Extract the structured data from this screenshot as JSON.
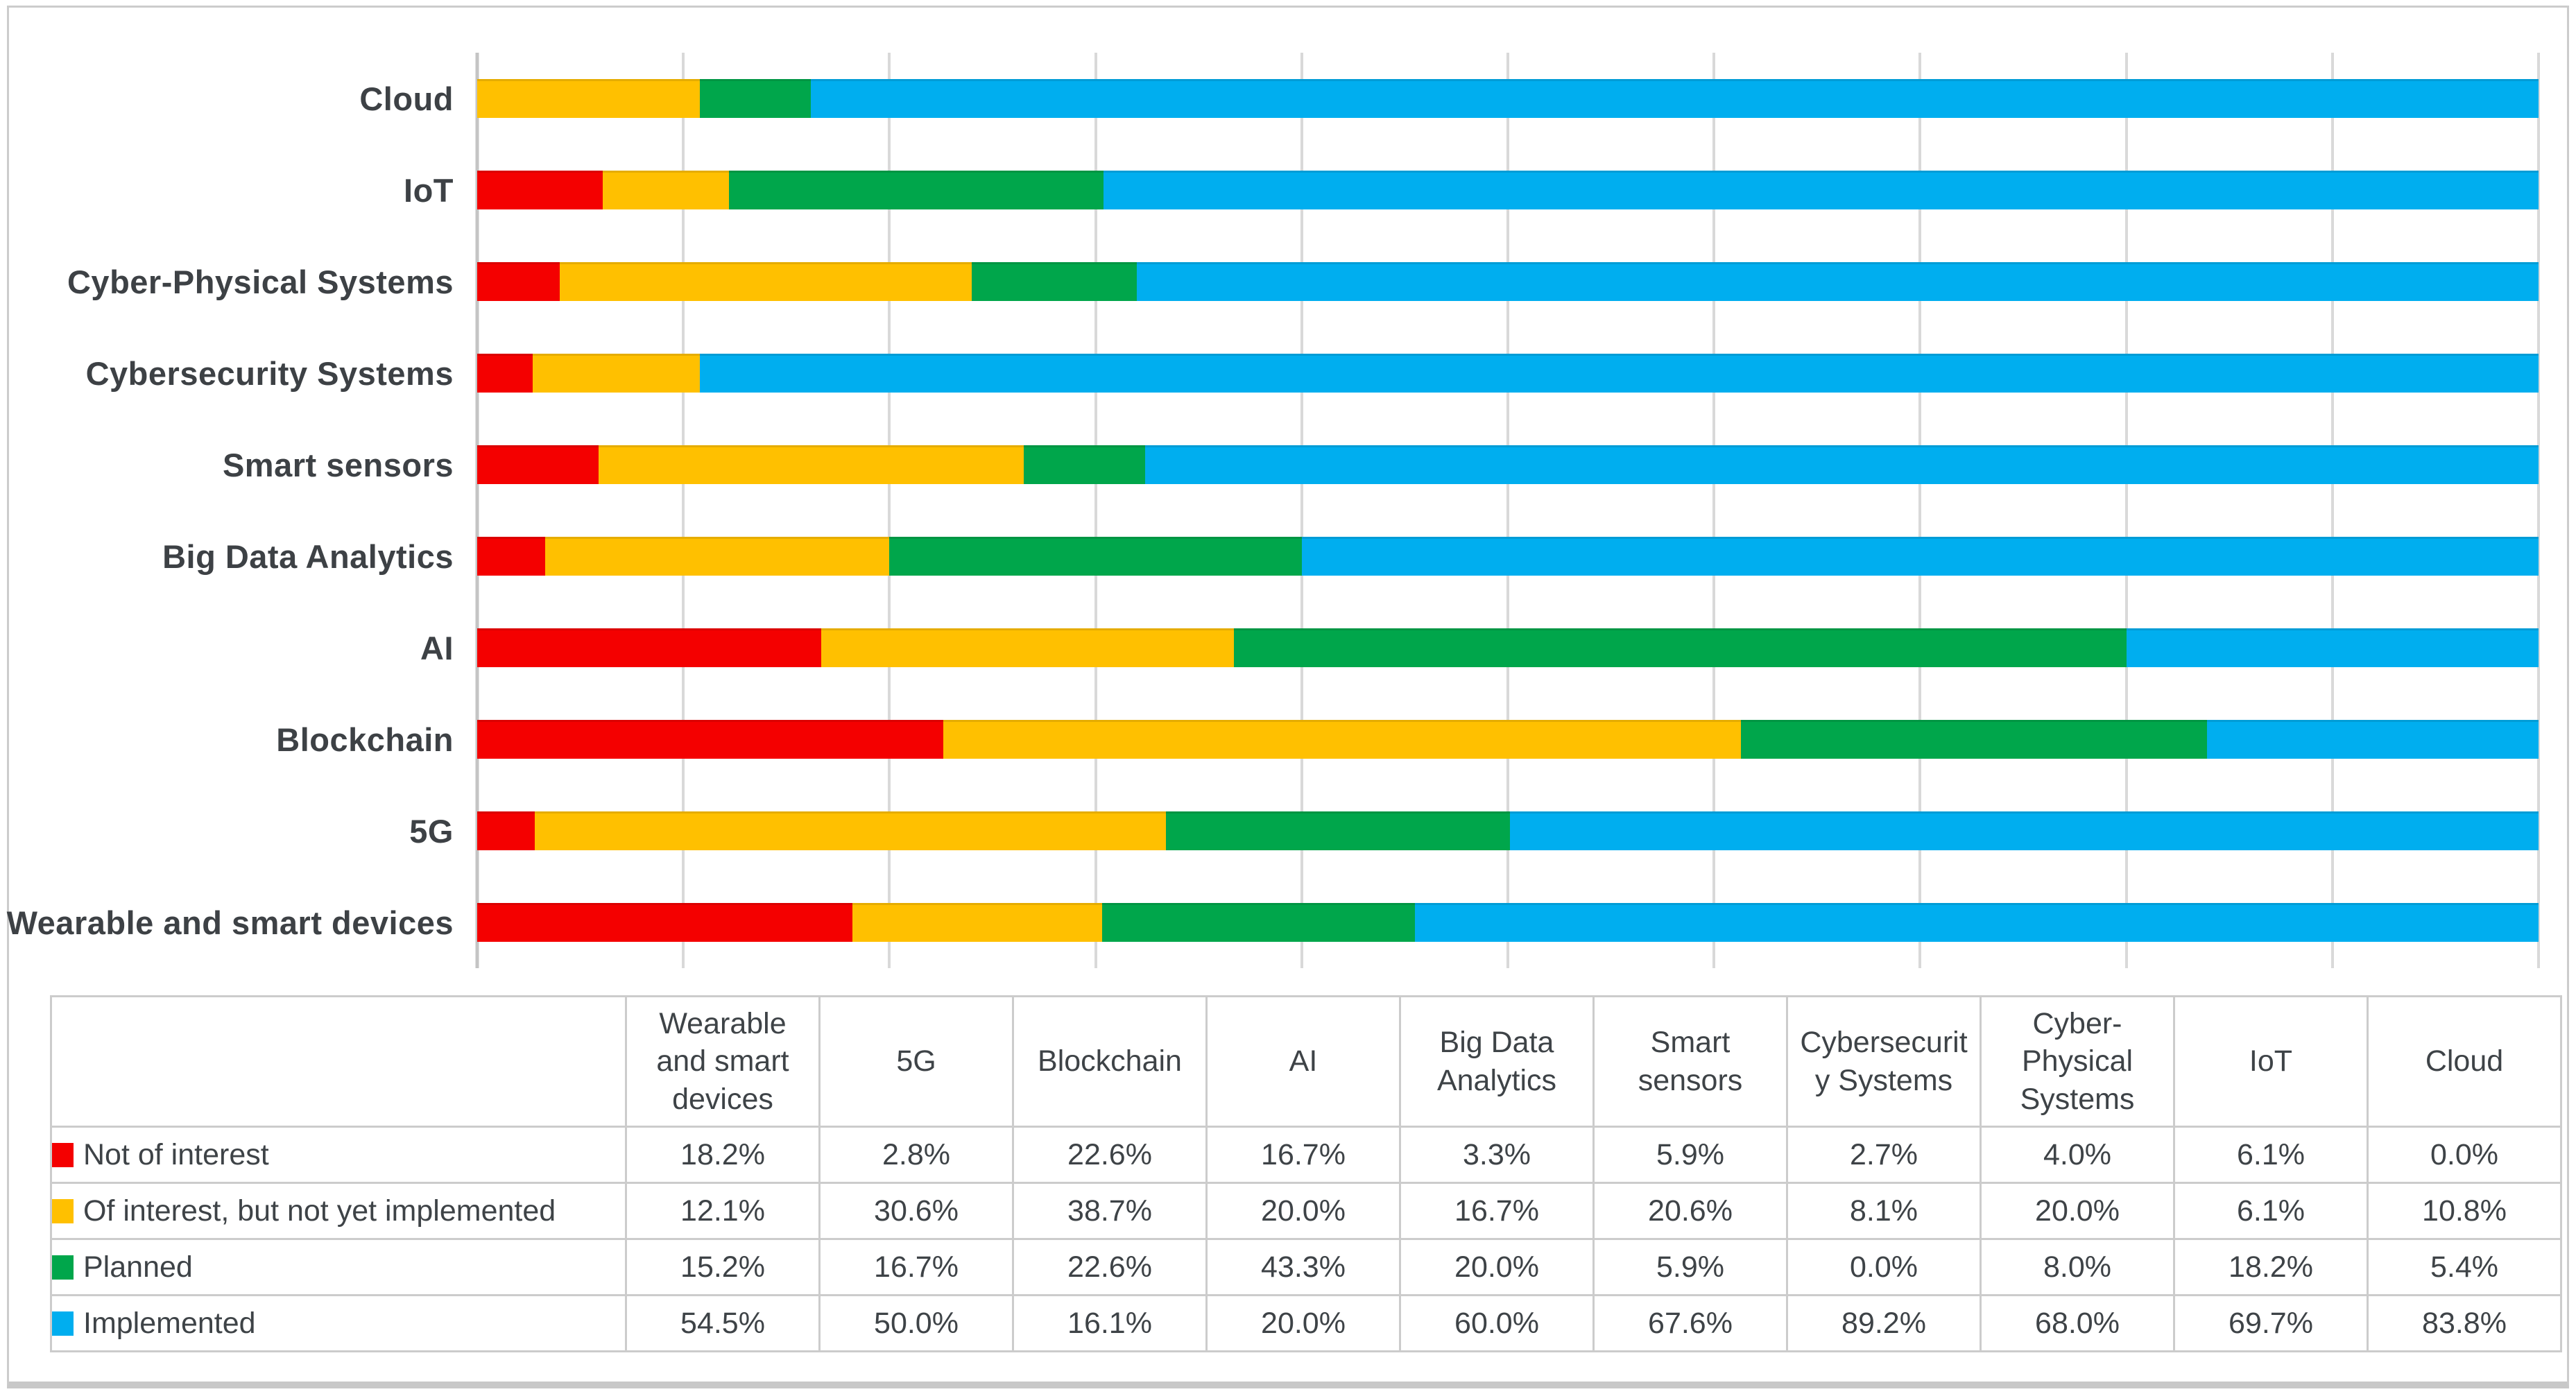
{
  "page": {
    "background": "#ffffff",
    "frame_border_color": "#cccccc",
    "gridline_color": "#d9d9d9",
    "axis_line_color": "#c4c4c4",
    "text_color": "#3e4347"
  },
  "chart_data": {
    "type": "bar",
    "orientation": "horizontal",
    "stacked": true,
    "unit": "percent",
    "title": "",
    "xlabel": "",
    "ylabel": "",
    "xlim": [
      0,
      100
    ],
    "gridline_step_pct": 10,
    "grid_on": true,
    "x_axis_tick_labels_visible": false,
    "legend_position": "table-below-chart",
    "series_names": [
      "Not of interest",
      "Of interest, but not yet implemented",
      "Planned",
      "Implemented"
    ],
    "series_colors": [
      "#f40000",
      "#ffc000",
      "#00a64b",
      "#00aeef"
    ],
    "rows_top_to_bottom": [
      {
        "category": "Cloud",
        "values": [
          0.0,
          10.8,
          5.4,
          83.8
        ]
      },
      {
        "category": "IoT",
        "values": [
          6.1,
          6.1,
          18.2,
          69.7
        ]
      },
      {
        "category": "Cyber-Physical Systems",
        "values": [
          4.0,
          20.0,
          8.0,
          68.0
        ]
      },
      {
        "category": "Cybersecurity Systems",
        "values": [
          2.7,
          8.1,
          0.0,
          89.2
        ]
      },
      {
        "category": "Smart sensors",
        "values": [
          5.9,
          20.6,
          5.9,
          67.6
        ]
      },
      {
        "category": "Big Data Analytics",
        "values": [
          3.3,
          16.7,
          20.0,
          60.0
        ]
      },
      {
        "category": "AI",
        "values": [
          16.7,
          20.0,
          43.3,
          20.0
        ]
      },
      {
        "category": "Blockchain",
        "values": [
          22.6,
          38.7,
          22.6,
          16.1
        ]
      },
      {
        "category": "5G",
        "values": [
          2.8,
          30.6,
          16.7,
          50.0
        ]
      },
      {
        "category": "Wearable and smart devices",
        "values": [
          18.2,
          12.1,
          15.2,
          54.5
        ]
      }
    ]
  },
  "table": {
    "column_headers": [
      "Wearable and smart devices",
      "5G",
      "Blockchain",
      "AI",
      "Big Data Analytics",
      "Smart sensors",
      "Cybersecurity Systems",
      "Cyber-Physical Systems",
      "IoT",
      "Cloud"
    ],
    "column_headers_display": [
      "Wearable\nand smart\ndevices",
      "5G",
      "Blockchain",
      "AI",
      "Big Data\nAnalytics",
      "Smart\nsensors",
      "Cybersecurit\ny Systems",
      "Cyber-\nPhysical\nSystems",
      "IoT",
      "Cloud"
    ],
    "rows": [
      {
        "label": "Not of interest",
        "swatch_color": "#f40000",
        "values": [
          "18.2%",
          "2.8%",
          "22.6%",
          "16.7%",
          "3.3%",
          "5.9%",
          "2.7%",
          "4.0%",
          "6.1%",
          "0.0%"
        ]
      },
      {
        "label": "Of interest, but not yet implemented",
        "swatch_color": "#ffc000",
        "values": [
          "12.1%",
          "30.6%",
          "38.7%",
          "20.0%",
          "16.7%",
          "20.6%",
          "8.1%",
          "20.0%",
          "6.1%",
          "10.8%"
        ]
      },
      {
        "label": "Planned",
        "swatch_color": "#00a64b",
        "values": [
          "15.2%",
          "16.7%",
          "22.6%",
          "43.3%",
          "20.0%",
          "5.9%",
          "0.0%",
          "8.0%",
          "18.2%",
          "5.4%"
        ]
      },
      {
        "label": "Implemented",
        "swatch_color": "#00aeef",
        "values": [
          "54.5%",
          "50.0%",
          "16.1%",
          "20.0%",
          "60.0%",
          "67.6%",
          "89.2%",
          "68.0%",
          "69.7%",
          "83.8%"
        ]
      }
    ]
  }
}
